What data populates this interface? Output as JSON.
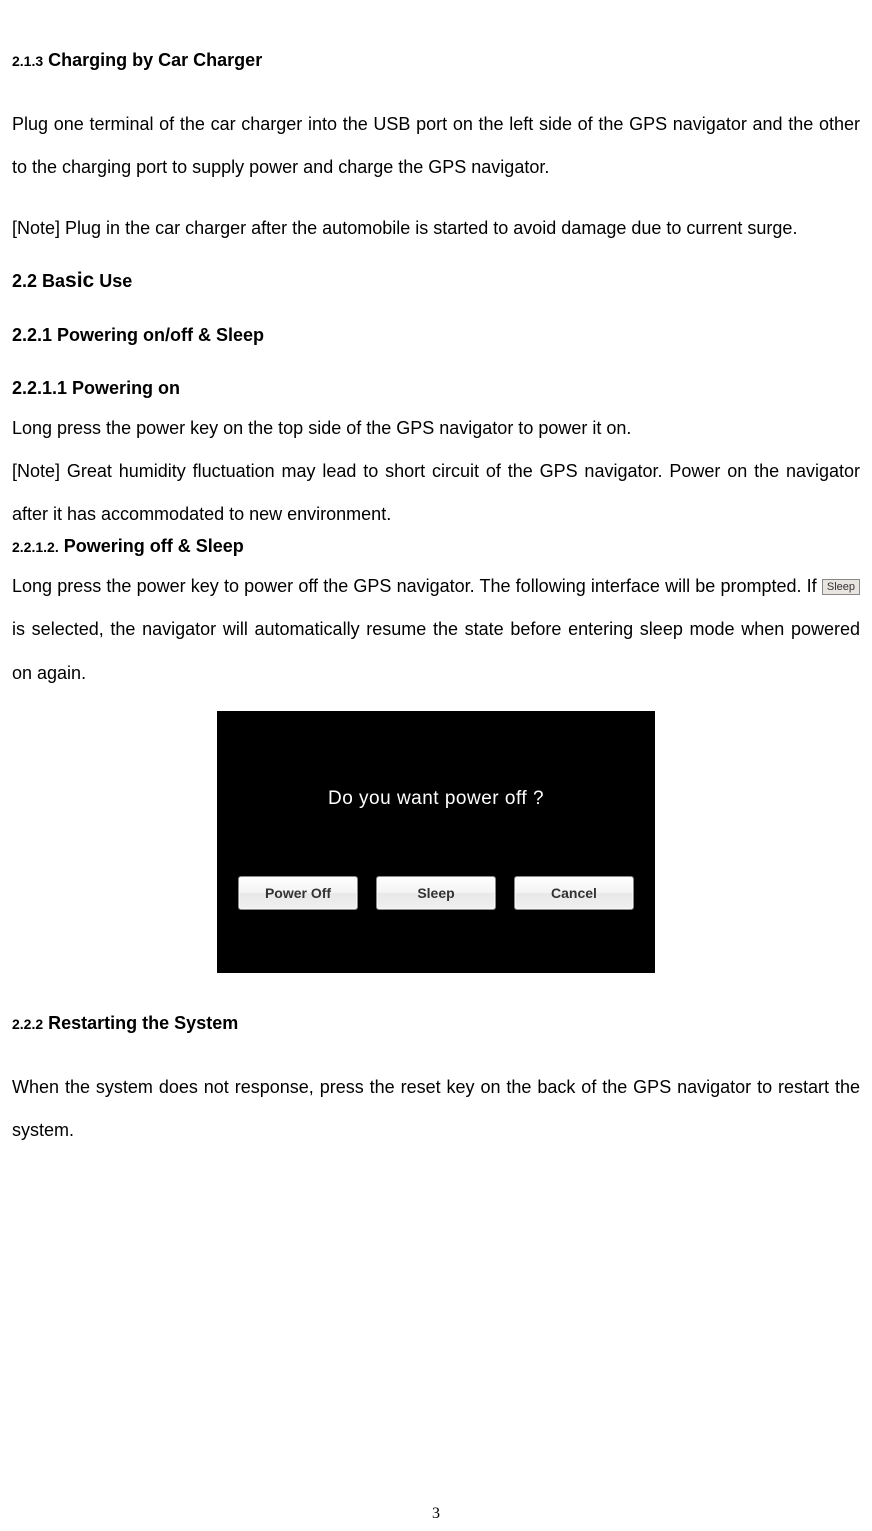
{
  "sections": {
    "s213": {
      "number": "2.1.3",
      "title": "Charging by Car Charger",
      "body1": "Plug one terminal of the car charger into the USB port on the left side of the GPS navigator and the other to the charging port to supply power and charge the GPS navigator.",
      "body2": "[Note] Plug in the car charger after the automobile is started to avoid damage due to current surge."
    },
    "s22": {
      "prefix": "2.2 Ba",
      "mid": "sic",
      "suffix": " Use"
    },
    "s221": {
      "title": "2.2.1 Powering on/off & Sleep"
    },
    "s2211": {
      "title": "2.2.1.1 Powering on",
      "body1": "Long press the power key on the top side of the GPS navigator to power it on.",
      "body2": "[Note] Great humidity fluctuation may lead to short circuit of the GPS navigator. Power on the navigator after it has accommodated to new environment."
    },
    "s2212": {
      "number": "2.2.1.2.",
      "title": "Powering off & Sleep",
      "body1a": "Long press the power key to power off the GPS navigator. The following interface will be prompted. If ",
      "sleep_label": "Sleep",
      "body1b": " is selected, the navigator will automatically resume the state before entering sleep mode when powered on again."
    },
    "screenshot": {
      "prompt": "Do you want power off ?",
      "buttons": {
        "power_off": "Power Off",
        "sleep": "Sleep",
        "cancel": "Cancel"
      },
      "colors": {
        "background": "#000000",
        "text": "#ffffff",
        "button_bg": "#f0f0f0",
        "button_text": "#333333"
      }
    },
    "s222": {
      "number": "2.2.2",
      "title": "Restarting the System",
      "body": "When the system does not response, press the reset key on the back of the GPS navigator to restart the system."
    }
  },
  "page_number": "3"
}
